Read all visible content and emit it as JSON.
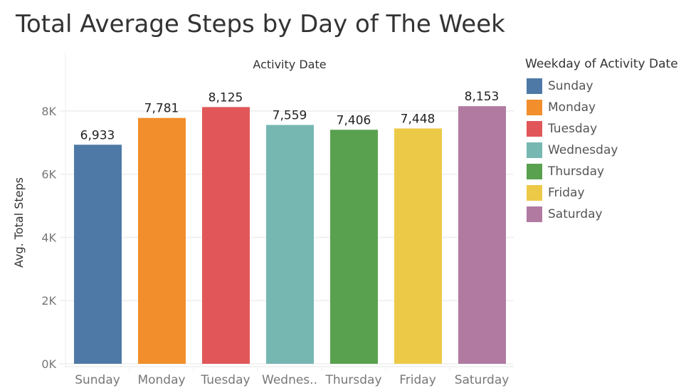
{
  "chart_data": {
    "type": "bar",
    "title": "Total Average Steps by Day of The Week",
    "xlabel": "Activity Date",
    "ylabel": "Avg. Total Steps",
    "categories": [
      "Sunday",
      "Monday",
      "Tuesday",
      "Wednesday",
      "Thursday",
      "Friday",
      "Saturday"
    ],
    "category_tick_labels": [
      "Sunday",
      "Monday",
      "Tuesday",
      "Wednes..",
      "Thursday",
      "Friday",
      "Saturday"
    ],
    "values": [
      6933,
      7781,
      8125,
      7559,
      7406,
      7448,
      8153
    ],
    "value_labels": [
      "6,933",
      "7,781",
      "8,125",
      "7,559",
      "7,406",
      "7,448",
      "8,153"
    ],
    "colors": [
      "#4e79a7",
      "#f28e2b",
      "#e15759",
      "#76b7b2",
      "#59a14f",
      "#edc948",
      "#b07aa1"
    ],
    "yticks": [
      0,
      2000,
      4000,
      6000,
      8000
    ],
    "ytick_labels": [
      "0K",
      "2K",
      "4K",
      "6K",
      "8K"
    ],
    "ylim": [
      0,
      9170
    ],
    "grid": true,
    "legend_title": "Weekday of Activity Date",
    "legend_position": "right"
  }
}
